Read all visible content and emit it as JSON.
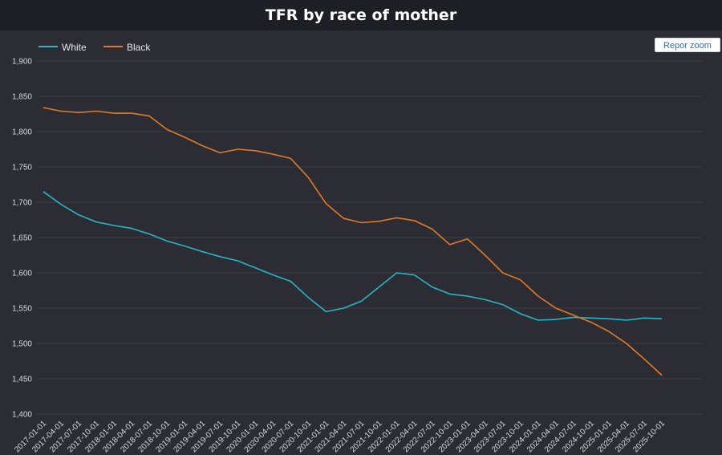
{
  "reset_zoom_label": "Repor zoom",
  "chart_data": {
    "type": "line",
    "title": "TFR by race of mother",
    "xlabel": "",
    "ylabel": "",
    "ylim": [
      1400,
      1900
    ],
    "yticks": [
      1400,
      1450,
      1500,
      1550,
      1600,
      1650,
      1700,
      1750,
      1800,
      1850,
      1900
    ],
    "ytick_labels": [
      "1,400",
      "1,450",
      "1,500",
      "1,550",
      "1,600",
      "1,650",
      "1,700",
      "1,750",
      "1,800",
      "1,850",
      "1,900"
    ],
    "x": [
      "2017-01-01",
      "2017-04-01",
      "2017-07-01",
      "2017-10-01",
      "2018-01-01",
      "2018-04-01",
      "2018-07-01",
      "2018-10-01",
      "2019-01-01",
      "2019-04-01",
      "2019-07-01",
      "2019-10-01",
      "2020-01-01",
      "2020-04-01",
      "2020-07-01",
      "2020-10-01",
      "2021-01-01",
      "2021-04-01",
      "2021-07-01",
      "2021-10-01",
      "2022-01-01",
      "2022-04-01",
      "2022-07-01",
      "2022-10-01",
      "2023-01-01",
      "2023-04-01",
      "2023-07-01",
      "2023-10-01",
      "2024-01-01",
      "2024-04-01",
      "2024-07-01",
      "2024-10-01",
      "2025-01-01",
      "2025-04-01",
      "2025-07-01",
      "2025-10-01"
    ],
    "grid": true,
    "legend_position": "top-left",
    "series": [
      {
        "name": "White",
        "color": "#2bb5c4",
        "values": [
          1715,
          1697,
          1682,
          1672,
          1667,
          1663,
          1655,
          1645,
          1638,
          1630,
          1623,
          1617,
          1607,
          1597,
          1588,
          1565,
          1545,
          1550,
          1560,
          1580,
          1600,
          1597,
          1580,
          1570,
          1567,
          1562,
          1555,
          1542,
          1533,
          1534,
          1537,
          1536,
          1535,
          1533,
          1536,
          1535
        ]
      },
      {
        "name": "Black",
        "color": "#e07b24",
        "values": [
          1834,
          1829,
          1827,
          1829,
          1826,
          1826,
          1822,
          1803,
          1792,
          1780,
          1770,
          1775,
          1773,
          1768,
          1762,
          1735,
          1698,
          1677,
          1671,
          1673,
          1678,
          1674,
          1662,
          1640,
          1648,
          1625,
          1600,
          1590,
          1567,
          1550,
          1540,
          1530,
          1517,
          1500,
          1478,
          1455
        ]
      }
    ]
  }
}
